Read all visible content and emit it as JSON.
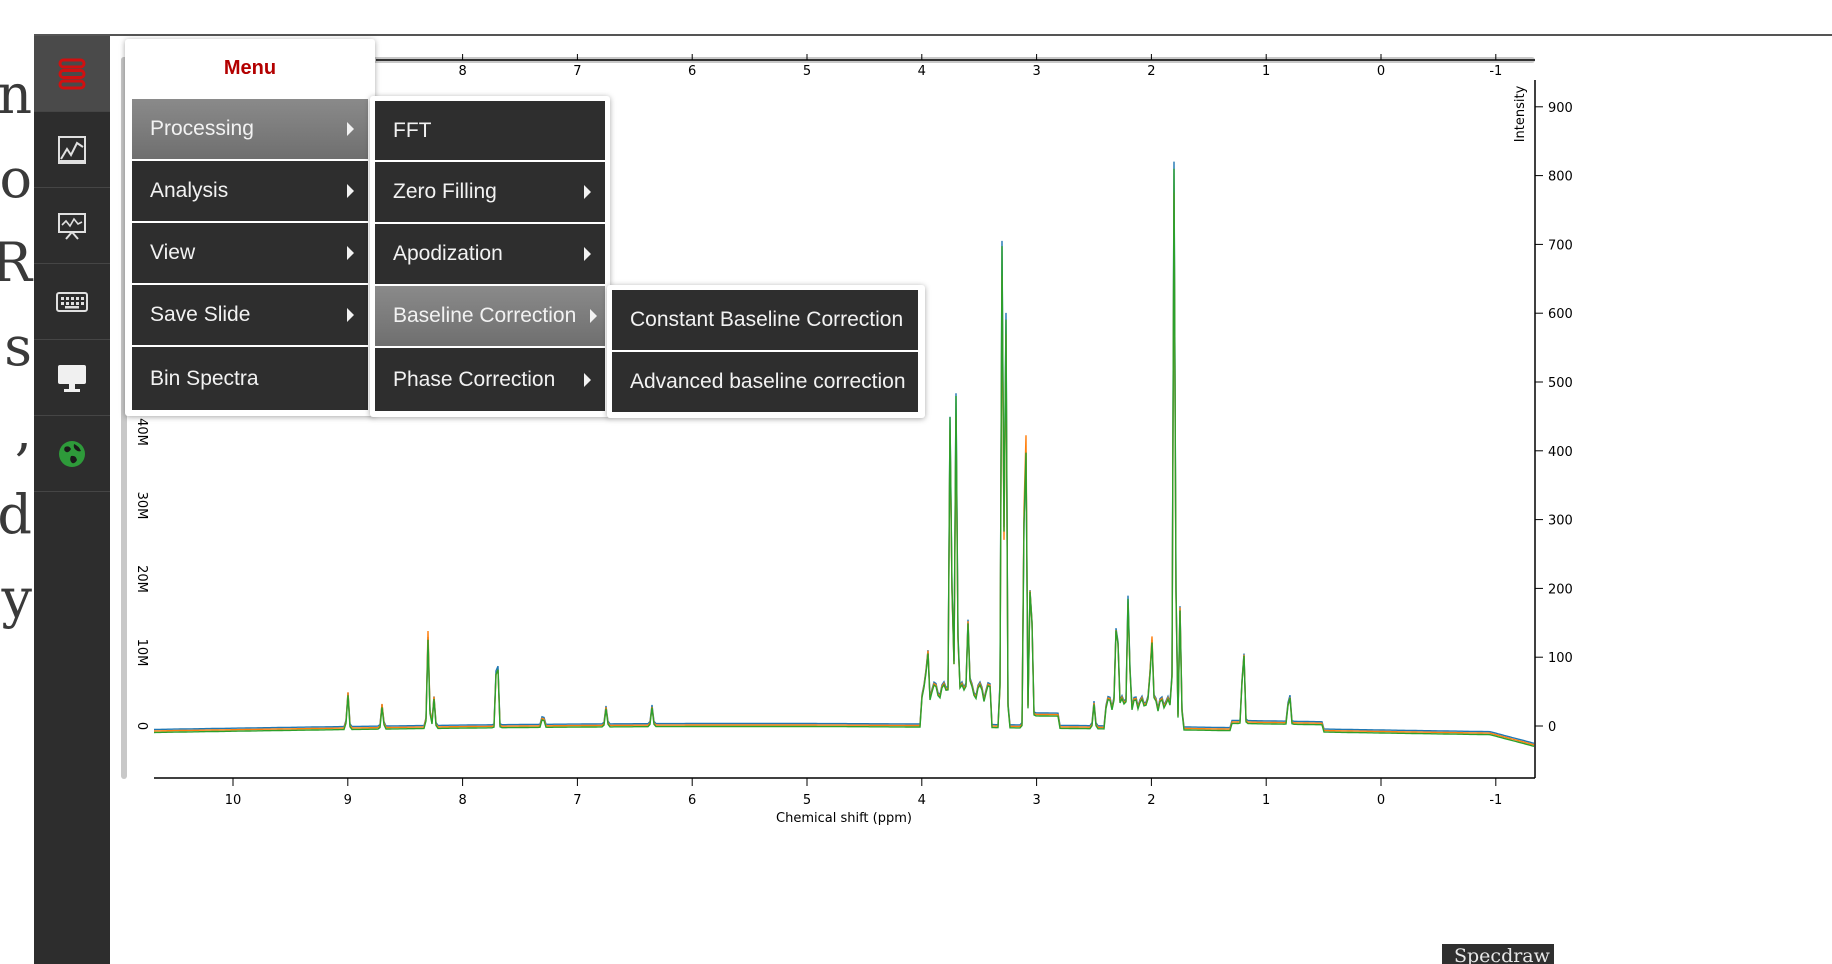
{
  "side_text": [
    "n",
    "o",
    "R",
    "s",
    ",",
    "d",
    "y"
  ],
  "toolbar": {
    "items": [
      {
        "icon": "stacked-layers-icon"
      },
      {
        "icon": "line-chart-icon"
      },
      {
        "icon": "presentation-chart-icon"
      },
      {
        "icon": "keyboard-icon"
      },
      {
        "icon": "monitor-icon"
      },
      {
        "icon": "globe-icon"
      }
    ]
  },
  "menu": {
    "title": "Menu",
    "items": [
      "Processing",
      "Analysis",
      "View",
      "Save Slide",
      "Bin Spectra"
    ],
    "processing_submenu": [
      "FFT",
      "Zero Filling",
      "Apodization",
      "Baseline Correction",
      "Phase Correction"
    ],
    "baseline_submenu": [
      "Constant Baseline Correction",
      "Advanced baseline correction"
    ]
  },
  "chart_data": {
    "type": "line",
    "xlabel": "Chemical shift (ppm)",
    "ylabel": "Intensity",
    "x_ticks": [
      "10",
      "9",
      "8",
      "7",
      "6",
      "5",
      "4",
      "3",
      "2",
      "1",
      "0",
      "-1"
    ],
    "top_x_ticks": [
      "8",
      "7",
      "6",
      "5",
      "4",
      "3",
      "2",
      "1",
      "0",
      "-1"
    ],
    "left_y_ticks": [
      "0",
      "10M",
      "20M",
      "30M",
      "40M"
    ],
    "right_y_ticks": [
      "0",
      "100",
      "200",
      "300",
      "400",
      "500",
      "600",
      "700",
      "800",
      "900"
    ],
    "x_reversed": true,
    "series_colors": [
      "#1f77b4",
      "#ff7f0e",
      "#2ca02c"
    ],
    "peaks": [
      {
        "x": 9.0,
        "y": 0.06
      },
      {
        "x": 8.7,
        "y": 0.04
      },
      {
        "x": 8.3,
        "y": 0.16
      },
      {
        "x": 8.25,
        "y": 0.05
      },
      {
        "x": 7.7,
        "y": 0.15
      },
      {
        "x": 7.3,
        "y": 0.02
      },
      {
        "x": 6.75,
        "y": 0.03
      },
      {
        "x": 6.35,
        "y": 0.03
      },
      {
        "x": 3.95,
        "y": 0.07
      },
      {
        "x": 3.75,
        "y": 0.49
      },
      {
        "x": 3.7,
        "y": 0.47
      },
      {
        "x": 3.6,
        "y": 0.12
      },
      {
        "x": 3.3,
        "y": 0.75
      },
      {
        "x": 3.27,
        "y": 0.7
      },
      {
        "x": 3.1,
        "y": 0.69
      },
      {
        "x": 3.05,
        "y": 0.3
      },
      {
        "x": 2.5,
        "y": 0.04
      },
      {
        "x": 2.3,
        "y": 0.18
      },
      {
        "x": 2.2,
        "y": 0.17
      },
      {
        "x": 2.0,
        "y": 0.14
      },
      {
        "x": 1.8,
        "y": 0.89
      },
      {
        "x": 1.75,
        "y": 0.2
      },
      {
        "x": 1.2,
        "y": 0.15
      },
      {
        "x": 0.8,
        "y": 0.06
      }
    ],
    "legend": "none"
  },
  "watermark": "Specdraw"
}
